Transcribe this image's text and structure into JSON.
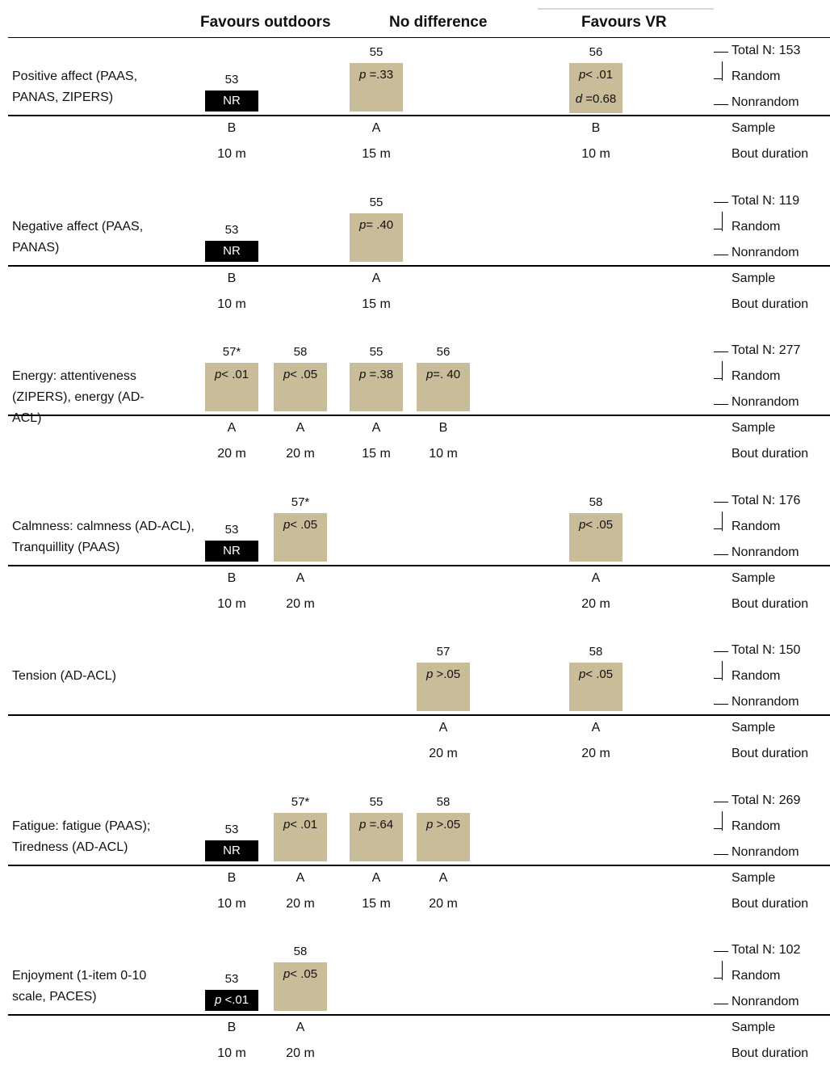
{
  "header": {
    "favours_outdoors": "Favours outdoors",
    "no_difference": "No difference",
    "favours_vr": "Favours VR"
  },
  "right_labels": {
    "random": "Random",
    "nonrandom": "Nonrandom",
    "sample": "Sample",
    "bout_duration": "Bout duration"
  },
  "outcomes": [
    {
      "label": "Positive affect (PAAS, PANAS, ZIPERS)",
      "total": "Total N: 153",
      "studies": [
        {
          "id": "53",
          "col": 0,
          "dark": true,
          "lines": [
            [
              [
                "NR",
                ""
              ]
            ]
          ],
          "sample": "B",
          "bout": "10 m"
        },
        {
          "id": "55",
          "col": 2,
          "dark": false,
          "lines": [
            [
              [
                "p",
                "i"
              ],
              [
                " =.33",
                ""
              ]
            ]
          ],
          "sample": "A",
          "bout": "15 m"
        },
        {
          "id": "56",
          "col": 4,
          "dark": false,
          "lines": [
            [
              [
                "p",
                "i"
              ],
              [
                "< .01",
                ""
              ]
            ],
            [
              [
                "d",
                "i"
              ],
              [
                " =0.68",
                ""
              ]
            ]
          ],
          "sample": "B",
          "bout": "10 m"
        }
      ]
    },
    {
      "label": "Negative affect (PAAS, PANAS)",
      "total": "Total N: 119",
      "studies": [
        {
          "id": "53",
          "col": 0,
          "dark": true,
          "lines": [
            [
              [
                "NR",
                ""
              ]
            ]
          ],
          "sample": "B",
          "bout": "10 m"
        },
        {
          "id": "55",
          "col": 2,
          "dark": false,
          "lines": [
            [
              [
                "p",
                "i"
              ],
              [
                "= .40",
                ""
              ]
            ]
          ],
          "sample": "A",
          "bout": "15 m"
        }
      ]
    },
    {
      "label": "Energy: attentiveness (ZIPERS), energy (AD-ACL)",
      "total": "Total N: 277",
      "studies": [
        {
          "id": "57*",
          "col": 0,
          "dark": false,
          "lines": [
            [
              [
                "p",
                "i"
              ],
              [
                "< .01",
                ""
              ]
            ]
          ],
          "sample": "A",
          "bout": "20 m"
        },
        {
          "id": "58",
          "col": 1,
          "dark": false,
          "lines": [
            [
              [
                "p",
                "i"
              ],
              [
                "< .05",
                ""
              ]
            ]
          ],
          "sample": "A",
          "bout": "20 m"
        },
        {
          "id": "55",
          "col": 2,
          "dark": false,
          "lines": [
            [
              [
                "p",
                "i"
              ],
              [
                " =.38",
                ""
              ]
            ]
          ],
          "sample": "A",
          "bout": "15 m"
        },
        {
          "id": "56",
          "col": 3,
          "dark": false,
          "lines": [
            [
              [
                "p",
                "i"
              ],
              [
                "=. 40",
                ""
              ]
            ]
          ],
          "sample": "B",
          "bout": "10 m"
        }
      ]
    },
    {
      "label": "Calmness: calmness (AD-ACL), Tranquillity (PAAS)",
      "total": "Total N: 176",
      "studies": [
        {
          "id": "53",
          "col": 0,
          "dark": true,
          "lines": [
            [
              [
                "NR",
                ""
              ]
            ]
          ],
          "sample": "B",
          "bout": "10 m"
        },
        {
          "id": "57*",
          "col": 1,
          "dark": false,
          "lines": [
            [
              [
                "p",
                "i"
              ],
              [
                "< .05",
                ""
              ]
            ]
          ],
          "sample": "A",
          "bout": "20 m"
        },
        {
          "id": "58",
          "col": 4,
          "dark": false,
          "lines": [
            [
              [
                "p",
                "i"
              ],
              [
                "< .05",
                ""
              ]
            ]
          ],
          "sample": "A",
          "bout": "20 m"
        }
      ]
    },
    {
      "label": "Tension (AD-ACL)",
      "total": "Total N: 150",
      "studies": [
        {
          "id": "57",
          "col": 3,
          "dark": false,
          "lines": [
            [
              [
                "p",
                "i"
              ],
              [
                " >.05",
                ""
              ]
            ]
          ],
          "sample": "A",
          "bout": "20 m"
        },
        {
          "id": "58",
          "col": 4,
          "dark": false,
          "lines": [
            [
              [
                "p",
                "i"
              ],
              [
                "< .05",
                ""
              ]
            ]
          ],
          "sample": "A",
          "bout": "20 m"
        }
      ]
    },
    {
      "label": "Fatigue: fatigue (PAAS); Tiredness (AD-ACL)",
      "total": "Total N: 269",
      "studies": [
        {
          "id": "53",
          "col": 0,
          "dark": true,
          "lines": [
            [
              [
                "NR",
                ""
              ]
            ]
          ],
          "sample": "B",
          "bout": "10 m"
        },
        {
          "id": "57*",
          "col": 1,
          "dark": false,
          "lines": [
            [
              [
                "p",
                "i"
              ],
              [
                "< .01",
                ""
              ]
            ]
          ],
          "sample": "A",
          "bout": "20 m"
        },
        {
          "id": "55",
          "col": 2,
          "dark": false,
          "lines": [
            [
              [
                "p",
                "i"
              ],
              [
                " =.64",
                ""
              ]
            ]
          ],
          "sample": "A",
          "bout": "15 m"
        },
        {
          "id": "58",
          "col": 3,
          "dark": false,
          "lines": [
            [
              [
                "p",
                "i"
              ],
              [
                " >.05",
                ""
              ]
            ]
          ],
          "sample": "A",
          "bout": "20 m"
        }
      ]
    },
    {
      "label": "Enjoyment (1-item 0-10 scale, PACES)",
      "total": "Total N: 102",
      "studies": [
        {
          "id": "53",
          "col": 0,
          "dark": true,
          "lines": [
            [
              [
                "p",
                "i"
              ],
              [
                " <.01",
                ""
              ]
            ]
          ],
          "sample": "B",
          "bout": "10 m"
        },
        {
          "id": "58",
          "col": 1,
          "dark": false,
          "lines": [
            [
              [
                "p",
                "i"
              ],
              [
                "< .05",
                ""
              ]
            ]
          ],
          "sample": "A",
          "bout": "20 m"
        }
      ]
    }
  ],
  "colors": {
    "box_fill": "#c9bc98",
    "box_dark": "#000000"
  }
}
